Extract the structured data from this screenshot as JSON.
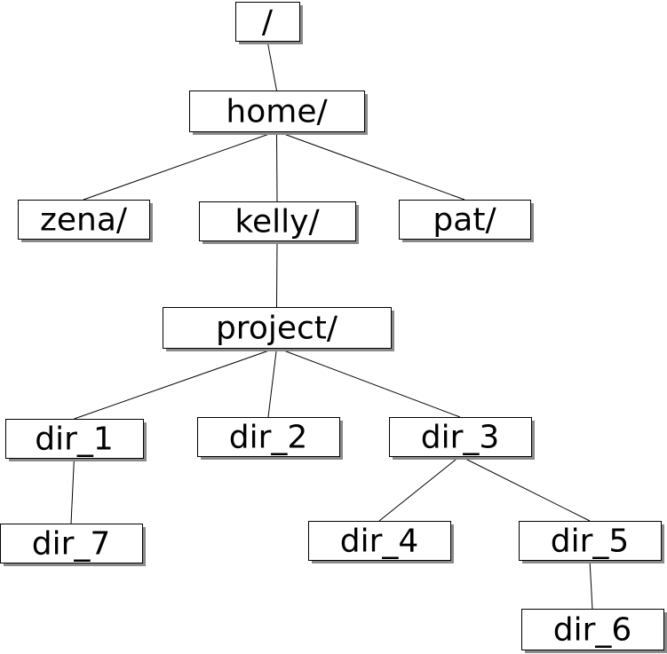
{
  "nodes": [
    {
      "id": "root",
      "label": "/"
    },
    {
      "id": "home",
      "label": "home/"
    },
    {
      "id": "zena",
      "label": "zena/"
    },
    {
      "id": "kelly",
      "label": "kelly/"
    },
    {
      "id": "pat",
      "label": "pat/"
    },
    {
      "id": "project",
      "label": "project/"
    },
    {
      "id": "dir_1",
      "label": "dir_1"
    },
    {
      "id": "dir_2",
      "label": "dir_2"
    },
    {
      "id": "dir_3",
      "label": "dir_3"
    },
    {
      "id": "dir_7",
      "label": "dir_7"
    },
    {
      "id": "dir_4",
      "label": "dir_4"
    },
    {
      "id": "dir_5",
      "label": "dir_5"
    },
    {
      "id": "dir_6",
      "label": "dir_6"
    }
  ],
  "edges": [
    [
      "root",
      "home"
    ],
    [
      "home",
      "zena"
    ],
    [
      "home",
      "kelly"
    ],
    [
      "home",
      "pat"
    ],
    [
      "kelly",
      "project"
    ],
    [
      "project",
      "dir_1"
    ],
    [
      "project",
      "dir_2"
    ],
    [
      "project",
      "dir_3"
    ],
    [
      "dir_1",
      "dir_7"
    ],
    [
      "dir_3",
      "dir_4"
    ],
    [
      "dir_3",
      "dir_5"
    ],
    [
      "dir_5",
      "dir_6"
    ]
  ],
  "colors": {
    "box_fill": "#ffffff",
    "box_border": "#000000",
    "shadow": "#8a8a8a",
    "line": "#000000"
  }
}
